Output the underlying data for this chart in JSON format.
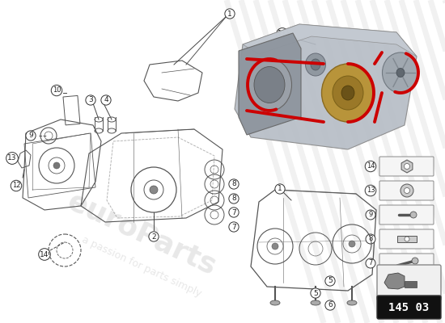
{
  "bg_color": "#ffffff",
  "part_number_box": "145 03",
  "watermark_text1": "euroParts",
  "watermark_text2": "a passion for parts simply",
  "accent_color": "#cc0000",
  "line_color": "#555555",
  "label_color": "#222222",
  "stripe_color": "#e0e0e0",
  "engine_gray": "#a8aeb5",
  "pulley_bronze": "#b8943a",
  "pulley_dark": "#7a6020",
  "part_gray": "#c8ccd0"
}
